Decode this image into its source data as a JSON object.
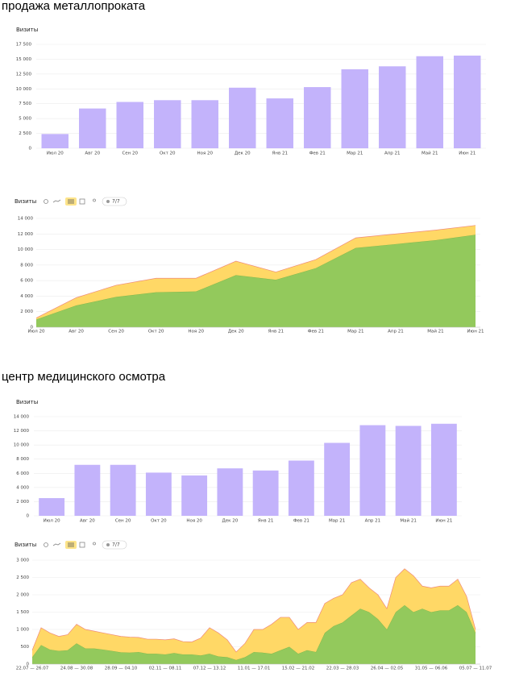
{
  "chart_data": [
    {
      "type": "bar",
      "title": "продажа металлопроката",
      "y_label": "Визиты",
      "color": "#c3b3fb",
      "categories": [
        "Июл 20",
        "Авг 20",
        "Сен 20",
        "Окт 20",
        "Ноя 20",
        "Дек 20",
        "Янв 21",
        "Фев 21",
        "Мар 21",
        "Апр 21",
        "Май 21",
        "Июн 21"
      ],
      "values": [
        2400,
        6700,
        7800,
        8100,
        8100,
        10200,
        8400,
        10300,
        13300,
        13800,
        15500,
        15600
      ],
      "ylim": [
        0,
        17500
      ],
      "yticks": [
        0,
        {
          "value": 2500,
          "label": "2 500"
        },
        {
          "value": 5000,
          "label": "5 000"
        },
        {
          "value": 7500,
          "label": "7 500"
        },
        {
          "value": 10000,
          "label": "10 000"
        },
        {
          "value": 12500,
          "label": "12 500"
        },
        {
          "value": 15000,
          "label": "15 000"
        },
        {
          "value": 17500,
          "label": "17 500"
        }
      ],
      "grid": true
    },
    {
      "type": "stacked_area",
      "y_label": "Визиты",
      "toolbar_label": "7/7",
      "categories": [
        "Июл 20",
        "Авг 20",
        "Сен 20",
        "Окт 20",
        "Ноя 20",
        "Дек 20",
        "Янв 21",
        "Фев 21",
        "Мар 21",
        "Апр 21",
        "Май 21",
        "Июн 21"
      ],
      "series": [
        {
          "color": "#93c95c",
          "values": [
            1000,
            2800,
            3900,
            4500,
            4600,
            6700,
            6100,
            7600,
            10200,
            10700,
            11200,
            11900
          ]
        },
        {
          "color": "#ffd866",
          "values": [
            200,
            1000,
            1500,
            1800,
            1700,
            1800,
            1000,
            1100,
            1300,
            1300,
            1300,
            1200
          ]
        }
      ],
      "ylim": [
        0,
        14000
      ],
      "yticks": [
        0,
        {
          "value": 2000,
          "label": "2 000"
        },
        {
          "value": 4000,
          "label": "4 000"
        },
        {
          "value": 6000,
          "label": "6 000"
        },
        {
          "value": 8000,
          "label": "8 000"
        },
        {
          "value": 10000,
          "label": "10 000"
        },
        {
          "value": 12000,
          "label": "12 000"
        },
        {
          "value": 14000,
          "label": "14 000"
        }
      ],
      "grid": true
    },
    {
      "type": "bar",
      "title": "центр медицинского осмотра",
      "y_label": "Визиты",
      "color": "#c3b3fb",
      "categories": [
        "Июл 20",
        "Авг 20",
        "Сен 20",
        "Окт 20",
        "Ноя 20",
        "Дек 20",
        "Янв 21",
        "Фев 21",
        "Мар 21",
        "Апр 21",
        "Май 21",
        "Июн 21"
      ],
      "values": [
        2500,
        7200,
        7200,
        6100,
        5700,
        6700,
        6400,
        7800,
        10300,
        12800,
        12700,
        13000
      ],
      "ylim": [
        0,
        14000
      ],
      "yticks": [
        0,
        {
          "value": 2000,
          "label": "2 000"
        },
        {
          "value": 4000,
          "label": "4 000"
        },
        {
          "value": 6000,
          "label": "6 000"
        },
        {
          "value": 8000,
          "label": "8 000"
        },
        {
          "value": 10000,
          "label": "10 000"
        },
        {
          "value": 12000,
          "label": "12 000"
        },
        {
          "value": 14000,
          "label": "14 000"
        }
      ],
      "grid": true
    },
    {
      "type": "stacked_area",
      "y_label": "Визиты",
      "toolbar_label": "7/7",
      "categories": [
        "22.07 — 26.07",
        null,
        null,
        null,
        null,
        "24.08 — 30.08",
        null,
        null,
        null,
        null,
        "28.09 — 04.10",
        null,
        null,
        null,
        null,
        "02.11 — 08.11",
        null,
        null,
        null,
        null,
        "07.12 — 13.12",
        null,
        null,
        null,
        null,
        "11.01 — 17.01",
        null,
        null,
        null,
        null,
        "15.02 — 21.02",
        null,
        null,
        null,
        null,
        "22.03 — 28.03",
        null,
        null,
        null,
        null,
        "26.04 — 02.05",
        null,
        null,
        null,
        null,
        "31.05 — 06.06",
        null,
        null,
        null,
        null,
        "05.07 — 11.07"
      ],
      "series": [
        {
          "color": "#93c95c",
          "values": [
            200,
            550,
            420,
            380,
            400,
            600,
            450,
            450,
            420,
            380,
            340,
            330,
            350,
            300,
            300,
            280,
            320,
            280,
            280,
            250,
            300,
            220,
            200,
            120,
            200,
            350,
            330,
            300,
            400,
            500,
            300,
            400,
            350,
            900,
            1100,
            1200,
            1400,
            1600,
            1500,
            1300,
            1000,
            1500,
            1700,
            1500,
            1600,
            1500,
            1550,
            1550,
            1700,
            1500,
            900
          ]
        },
        {
          "color": "#ffd866",
          "values": [
            200,
            500,
            480,
            420,
            450,
            550,
            550,
            500,
            480,
            470,
            460,
            450,
            420,
            420,
            420,
            420,
            410,
            370,
            360,
            500,
            750,
            680,
            500,
            230,
            400,
            650,
            670,
            850,
            950,
            850,
            700,
            800,
            850,
            850,
            800,
            800,
            950,
            850,
            700,
            700,
            600,
            1000,
            1050,
            1050,
            650,
            700,
            700,
            700,
            750,
            450,
            100
          ]
        }
      ],
      "ylim": [
        0,
        3000
      ],
      "yticks": [
        0,
        500,
        {
          "value": 1000,
          "label": "1 000"
        },
        {
          "value": 1500,
          "label": "1 500"
        },
        {
          "value": 2000,
          "label": "2 000"
        },
        {
          "value": 2500,
          "label": "2 500"
        },
        {
          "value": 3000,
          "label": "3 000"
        }
      ],
      "grid": true
    }
  ]
}
